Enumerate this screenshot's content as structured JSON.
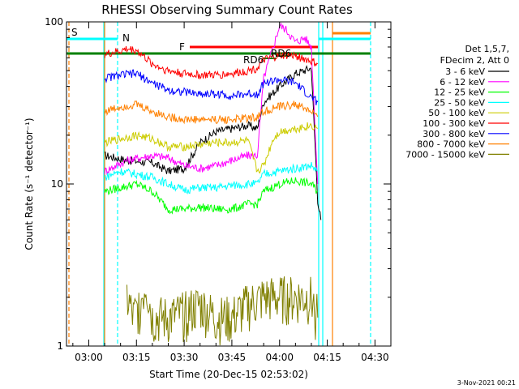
{
  "chart_data": {
    "type": "line",
    "title": "RHESSI Observing Summary Count Rates",
    "xlabel": "Start Time (20-Dec-15 02:53:02)",
    "ylabel": "Count Rate (s⁻¹ detector⁻¹)",
    "ylog": true,
    "ylim": [
      1,
      100
    ],
    "xlim_minutes": [
      -7,
      95
    ],
    "x_ticks": [
      {
        "t": 0,
        "label": "03:00"
      },
      {
        "t": 15,
        "label": "03:15"
      },
      {
        "t": 30,
        "label": "03:30"
      },
      {
        "t": 45,
        "label": "03:45"
      },
      {
        "t": 60,
        "label": "04:00"
      },
      {
        "t": 75,
        "label": "04:15"
      },
      {
        "t": 90,
        "label": "04:30"
      }
    ],
    "y_ticks": [
      {
        "v": 1,
        "label": "1"
      },
      {
        "v": 10,
        "label": "10"
      },
      {
        "v": 100,
        "label": "100"
      }
    ],
    "legend_header": [
      "Det 1,5,7,",
      "FDecim 2, Att 0"
    ],
    "series": [
      {
        "name": "3 - 6 keV",
        "color": "#000000",
        "points": [
          [
            5,
            15
          ],
          [
            12,
            14
          ],
          [
            20,
            13.5
          ],
          [
            25,
            12
          ],
          [
            30,
            12.5
          ],
          [
            35,
            18
          ],
          [
            40,
            21
          ],
          [
            45,
            22
          ],
          [
            50,
            23
          ],
          [
            53,
            22
          ],
          [
            55,
            32
          ],
          [
            60,
            40
          ],
          [
            65,
            48
          ],
          [
            70,
            52
          ],
          [
            72,
            8
          ],
          [
            73,
            6
          ]
        ]
      },
      {
        "name": "6 - 12 keV",
        "color": "#ff00ff",
        "points": [
          [
            5,
            12
          ],
          [
            12,
            14
          ],
          [
            20,
            15
          ],
          [
            25,
            14.5
          ],
          [
            30,
            13
          ],
          [
            35,
            12.5
          ],
          [
            40,
            13
          ],
          [
            45,
            14
          ],
          [
            50,
            15
          ],
          [
            53,
            15
          ],
          [
            55,
            45
          ],
          [
            58,
            70
          ],
          [
            60,
            95
          ],
          [
            62,
            90
          ],
          [
            65,
            75
          ],
          [
            68,
            80
          ],
          [
            70,
            70
          ],
          [
            72,
            10
          ]
        ]
      },
      {
        "name": "12 - 25 keV",
        "color": "#00ff00",
        "points": [
          [
            5,
            9
          ],
          [
            10,
            9.5
          ],
          [
            15,
            10
          ],
          [
            20,
            9
          ],
          [
            25,
            7
          ],
          [
            30,
            7
          ],
          [
            35,
            7.2
          ],
          [
            40,
            7
          ],
          [
            45,
            7
          ],
          [
            50,
            7.5
          ],
          [
            53,
            7.5
          ],
          [
            55,
            9
          ],
          [
            60,
            10
          ],
          [
            65,
            10.5
          ],
          [
            70,
            10
          ],
          [
            72,
            9
          ]
        ]
      },
      {
        "name": "25 - 50 keV",
        "color": "#00ffff",
        "points": [
          [
            5,
            11
          ],
          [
            10,
            12
          ],
          [
            15,
            11.5
          ],
          [
            20,
            11
          ],
          [
            25,
            10
          ],
          [
            30,
            9.2
          ],
          [
            35,
            9.5
          ],
          [
            40,
            9.5
          ],
          [
            45,
            9.8
          ],
          [
            50,
            10
          ],
          [
            53,
            10
          ],
          [
            55,
            11.5
          ],
          [
            60,
            12
          ],
          [
            65,
            12.5
          ],
          [
            70,
            13
          ],
          [
            72,
            12
          ]
        ]
      },
      {
        "name": "50 - 100 keV",
        "color": "#cccc00",
        "points": [
          [
            5,
            18
          ],
          [
            10,
            19
          ],
          [
            15,
            20
          ],
          [
            20,
            19
          ],
          [
            25,
            17
          ],
          [
            30,
            17
          ],
          [
            35,
            17.5
          ],
          [
            40,
            18
          ],
          [
            45,
            18
          ],
          [
            50,
            18.5
          ],
          [
            53,
            12
          ],
          [
            55,
            13
          ],
          [
            58,
            19
          ],
          [
            60,
            21
          ],
          [
            65,
            22
          ],
          [
            70,
            23
          ],
          [
            72,
            22
          ]
        ]
      },
      {
        "name": "100 - 300 keV",
        "color": "#ff0000",
        "points": [
          [
            5,
            63
          ],
          [
            10,
            66
          ],
          [
            12,
            68
          ],
          [
            15,
            67
          ],
          [
            20,
            55
          ],
          [
            25,
            50
          ],
          [
            30,
            48
          ],
          [
            35,
            47
          ],
          [
            40,
            47
          ],
          [
            45,
            48
          ],
          [
            50,
            50
          ],
          [
            53,
            52
          ],
          [
            55,
            58
          ],
          [
            60,
            62
          ],
          [
            65,
            62
          ],
          [
            70,
            57
          ],
          [
            72,
            55
          ]
        ]
      },
      {
        "name": "300 - 800 keV",
        "color": "#0000ff",
        "points": [
          [
            5,
            45
          ],
          [
            10,
            47
          ],
          [
            15,
            48
          ],
          [
            20,
            42
          ],
          [
            25,
            38
          ],
          [
            30,
            37
          ],
          [
            35,
            36
          ],
          [
            40,
            36
          ],
          [
            45,
            35
          ],
          [
            50,
            36
          ],
          [
            53,
            36
          ],
          [
            55,
            42
          ],
          [
            60,
            44
          ],
          [
            65,
            42
          ],
          [
            70,
            34
          ],
          [
            72,
            32
          ]
        ]
      },
      {
        "name": "800 - 7000 keV",
        "color": "#ff8000",
        "points": [
          [
            5,
            28
          ],
          [
            10,
            30
          ],
          [
            15,
            31
          ],
          [
            20,
            28
          ],
          [
            25,
            26
          ],
          [
            30,
            25
          ],
          [
            35,
            25
          ],
          [
            40,
            25
          ],
          [
            45,
            25
          ],
          [
            50,
            25.5
          ],
          [
            53,
            26
          ],
          [
            55,
            28
          ],
          [
            60,
            30
          ],
          [
            65,
            31
          ],
          [
            70,
            28
          ],
          [
            72,
            26
          ]
        ]
      },
      {
        "name": "7000 - 15000 keV",
        "color": "#808000",
        "points": [
          [
            12,
            2
          ],
          [
            14,
            1.5
          ],
          [
            16,
            1.8
          ],
          [
            18,
            2.5
          ],
          [
            20,
            1.5
          ],
          [
            25,
            1.5
          ],
          [
            30,
            1.6
          ],
          [
            35,
            1.8
          ],
          [
            40,
            1.5
          ],
          [
            45,
            1.5
          ],
          [
            50,
            1.8
          ],
          [
            55,
            2
          ],
          [
            60,
            2
          ],
          [
            65,
            2
          ],
          [
            70,
            2
          ],
          [
            72,
            1.5
          ]
        ]
      }
    ],
    "annotations": [
      {
        "text": "S",
        "color": "#ff8000"
      },
      {
        "text": "N",
        "color": "#00ffff"
      },
      {
        "text": "F",
        "color": "#ff0000"
      },
      {
        "text": "RD6",
        "color": "#008000"
      },
      {
        "text": "RD6",
        "color": "#008000"
      }
    ],
    "footer_date": "3-Nov-2021 00:21"
  }
}
